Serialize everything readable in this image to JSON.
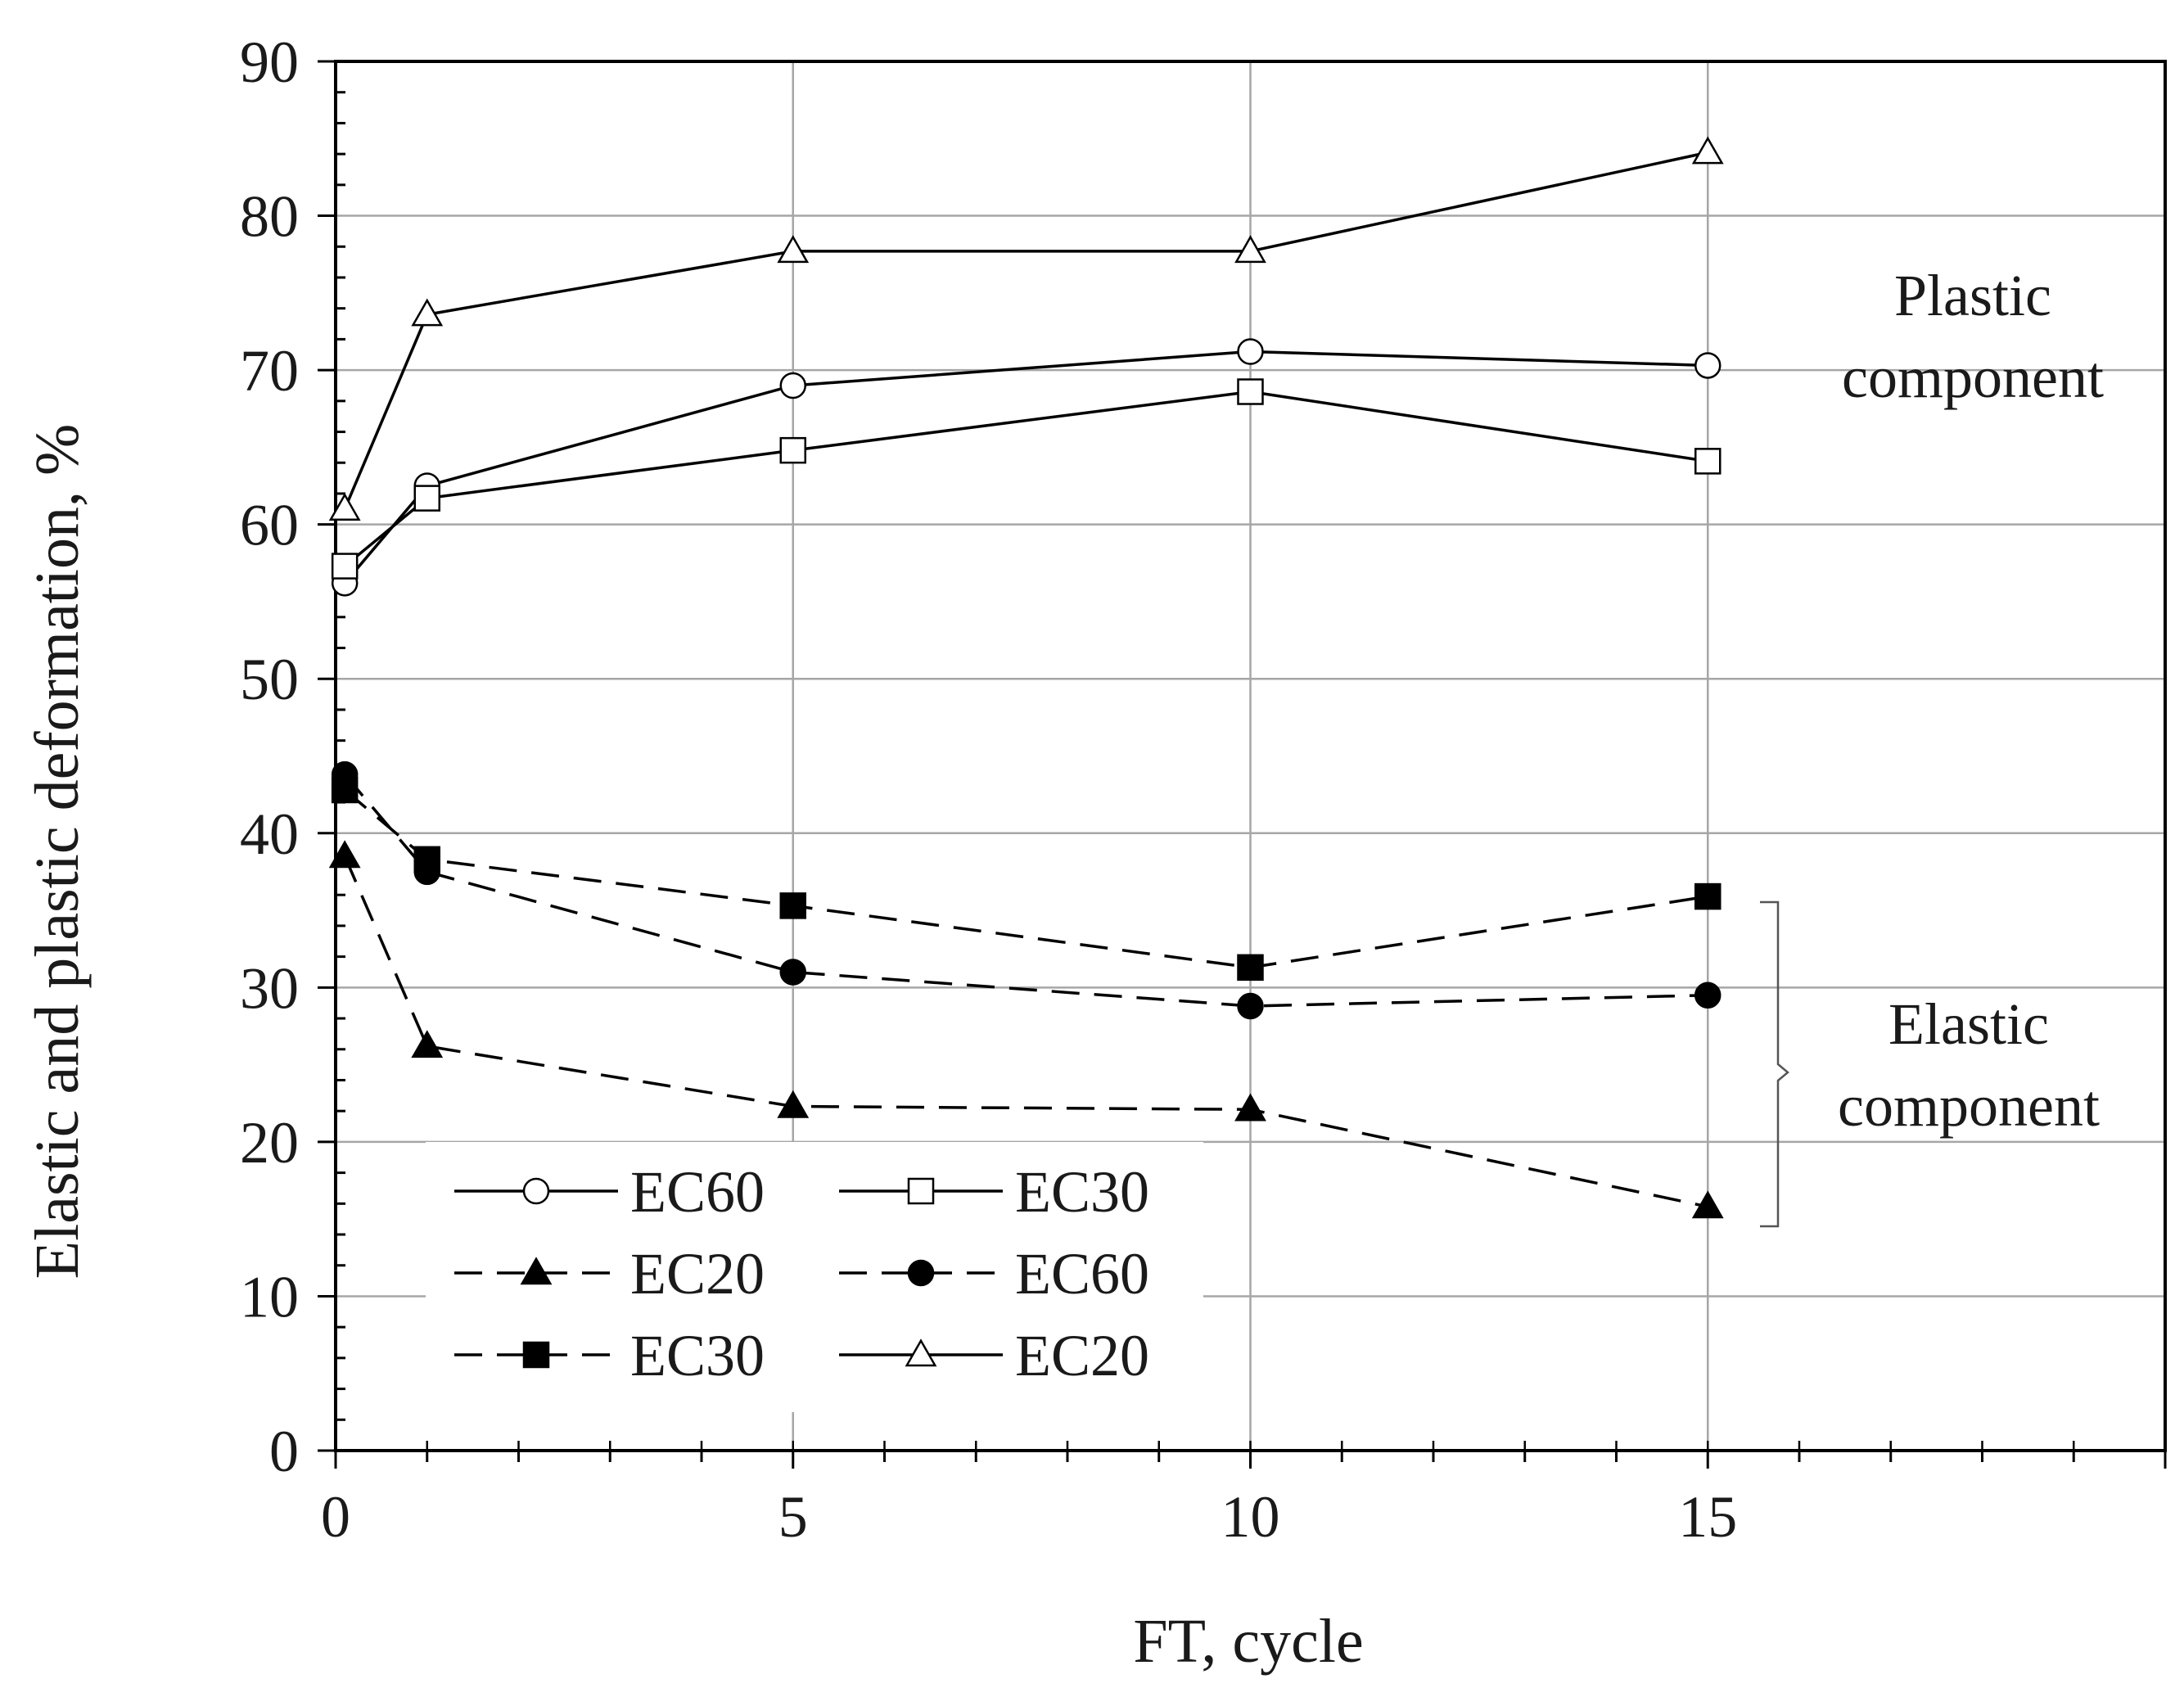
{
  "chart_data": {
    "type": "line",
    "title": "",
    "xlabel": "FT, cycle",
    "ylabel": "Elastic and plastic deformation, %",
    "xlim": [
      0,
      20
    ],
    "ylim": [
      0,
      90
    ],
    "x_ticks": [
      0,
      5,
      10,
      15
    ],
    "y_ticks": [
      0,
      10,
      20,
      30,
      40,
      50,
      60,
      70,
      80,
      90
    ],
    "grid": true,
    "legend_position": "bottom-left",
    "x": [
      0,
      1,
      5,
      10,
      15
    ],
    "series": [
      {
        "name": "EC60",
        "group": "plastic",
        "marker": "circle",
        "filled": false,
        "dashed": false,
        "values": [
          56.2,
          62.5,
          69.0,
          71.2,
          70.3
        ]
      },
      {
        "name": "EC30",
        "group": "plastic",
        "marker": "square",
        "filled": false,
        "dashed": false,
        "values": [
          57.3,
          61.7,
          64.8,
          68.6,
          64.1
        ]
      },
      {
        "name": "EC20",
        "group": "elastic",
        "marker": "triangle",
        "filled": true,
        "dashed": true,
        "values": [
          38.5,
          26.2,
          22.3,
          22.1,
          15.8
        ]
      },
      {
        "name": "EC60",
        "group": "elastic",
        "marker": "circle",
        "filled": true,
        "dashed": true,
        "values": [
          43.8,
          37.5,
          31.0,
          28.8,
          29.5
        ]
      },
      {
        "name": "EC30",
        "group": "elastic",
        "marker": "square",
        "filled": true,
        "dashed": true,
        "values": [
          42.8,
          38.3,
          35.3,
          31.3,
          35.9
        ]
      },
      {
        "name": "EC20",
        "group": "plastic",
        "marker": "triangle",
        "filled": false,
        "dashed": false,
        "values": [
          61.0,
          73.6,
          77.7,
          77.7,
          84.1
        ]
      }
    ],
    "annotations": [
      {
        "id": "plastic",
        "lines": [
          "Plastic",
          "component"
        ]
      },
      {
        "id": "elastic",
        "lines": [
          "Elastic",
          "component"
        ]
      }
    ]
  }
}
